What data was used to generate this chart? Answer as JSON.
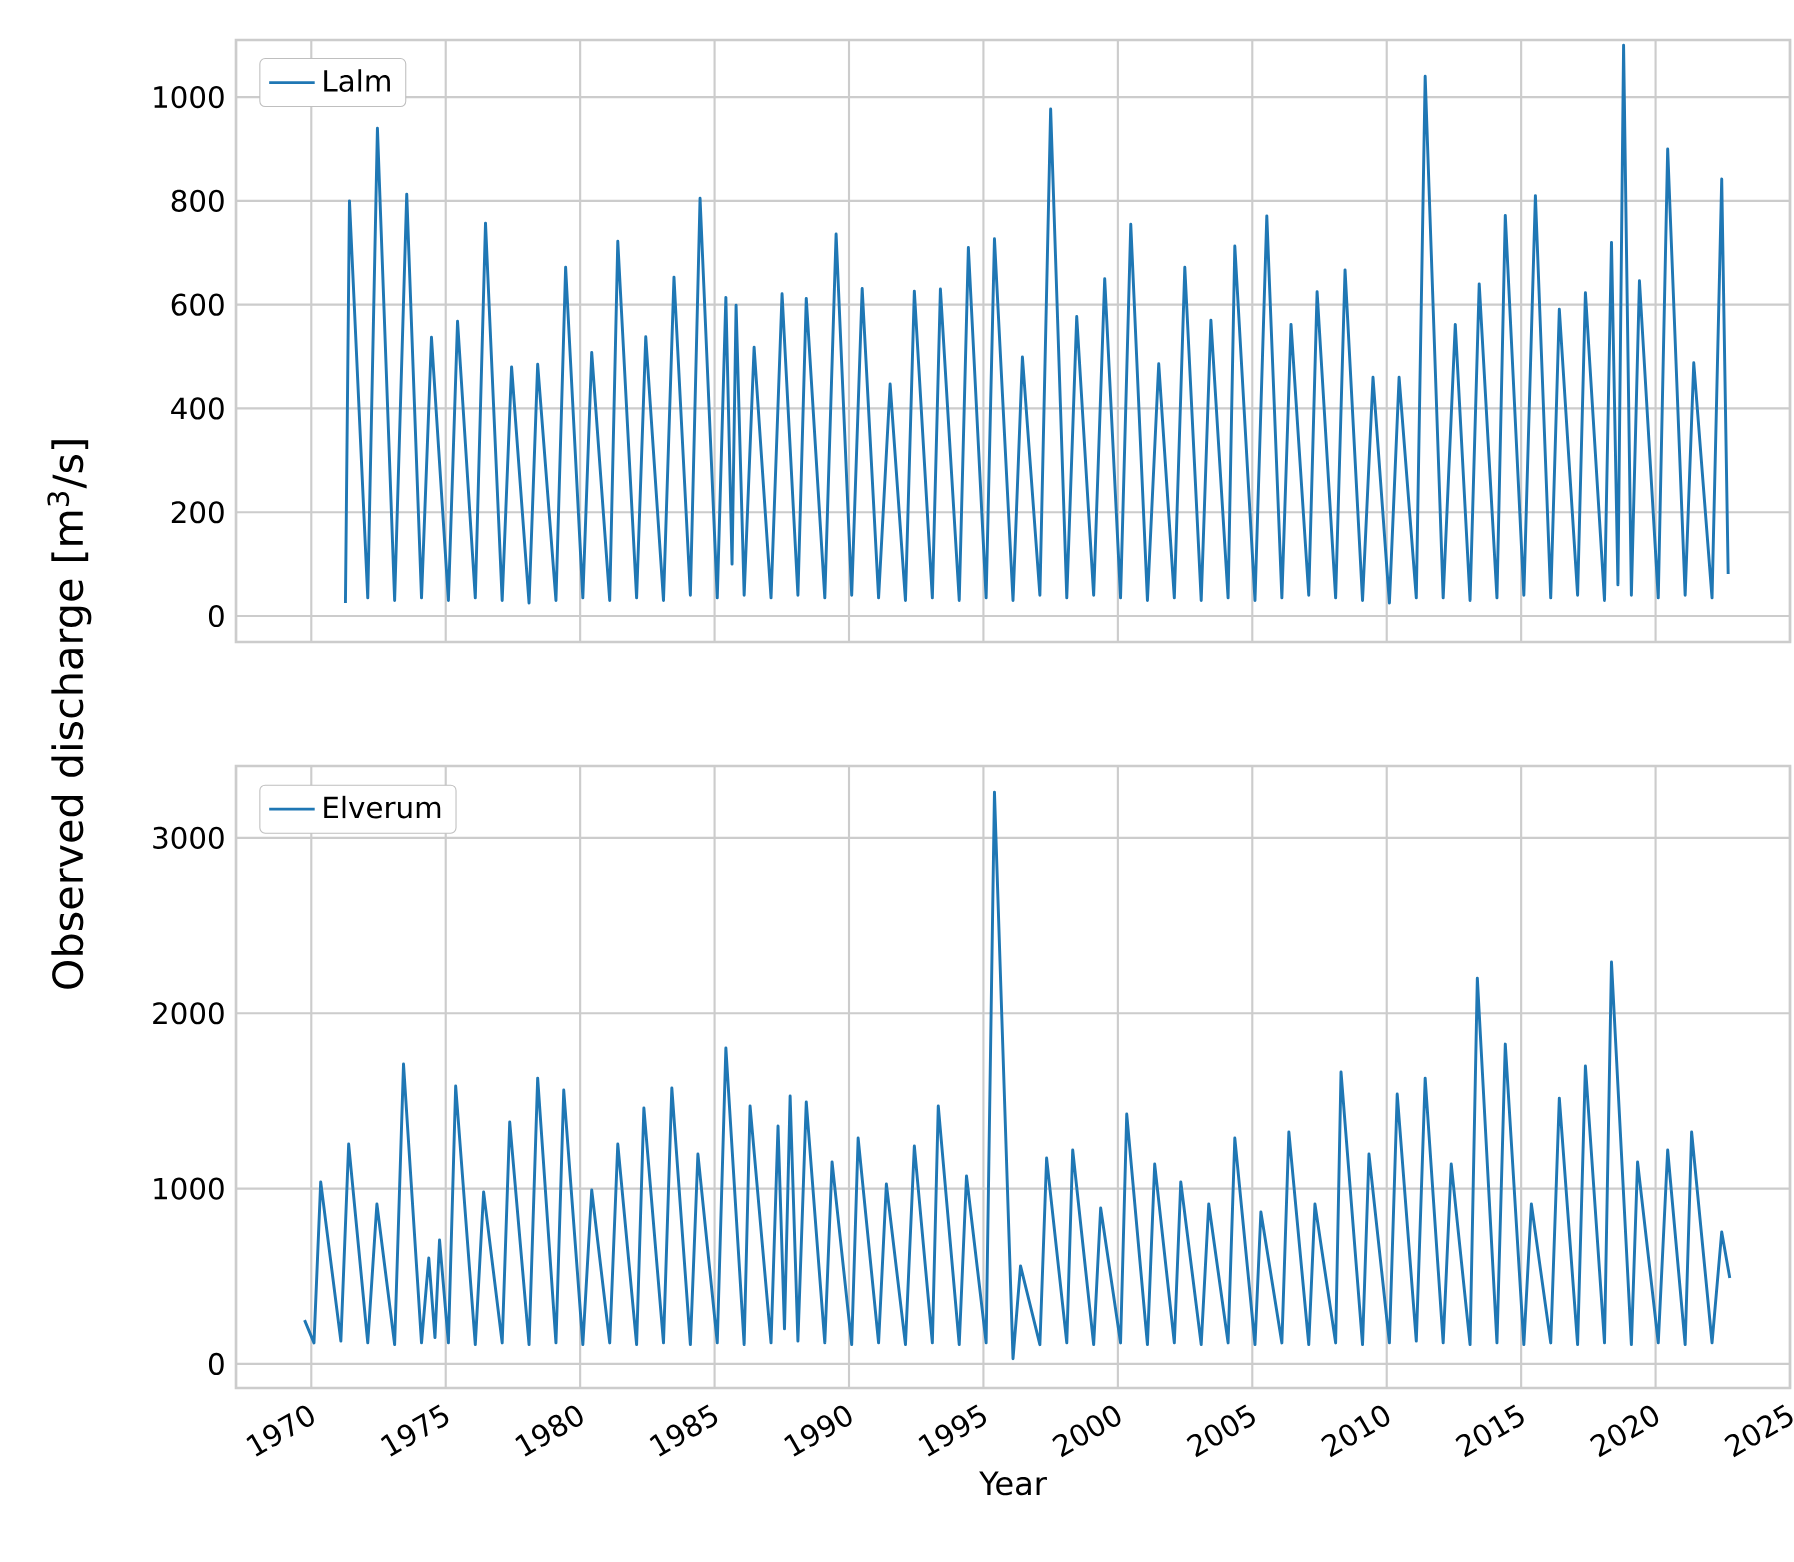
{
  "chart_data": [
    {
      "type": "line",
      "ylabel": "Observed discharge [m$^{3}$/s]",
      "tick_labels": "y",
      "grid": true,
      "legend": "top left",
      "xlim": [
        1967.2,
        2025.0
      ],
      "ylim": [
        -50,
        1110
      ],
      "xticks": [
        1970,
        1975,
        1980,
        1985,
        1990,
        1995,
        2000,
        2005,
        2010,
        2015,
        2020,
        2025
      ],
      "yticks": [
        0,
        200,
        400,
        600,
        800,
        1000
      ],
      "x": [
        1971.27,
        1971.42,
        1972.1,
        1972.46,
        1973.1,
        1973.55,
        1974.1,
        1974.47,
        1975.1,
        1975.44,
        1976.1,
        1976.48,
        1977.1,
        1977.45,
        1978.1,
        1978.42,
        1979.1,
        1979.46,
        1980.1,
        1980.43,
        1981.1,
        1981.4,
        1982.1,
        1982.44,
        1983.1,
        1983.49,
        1984.1,
        1984.46,
        1985.1,
        1985.42,
        1985.65,
        1985.8,
        1986.1,
        1986.47,
        1987.1,
        1987.51,
        1988.1,
        1988.41,
        1989.1,
        1989.52,
        1990.1,
        1990.49,
        1991.1,
        1991.53,
        1992.1,
        1992.43,
        1993.1,
        1993.4,
        1994.1,
        1994.44,
        1995.1,
        1995.41,
        1996.1,
        1996.45,
        1997.1,
        1997.5,
        1998.1,
        1998.47,
        1999.1,
        1999.51,
        2000.1,
        2000.48,
        2001.1,
        2001.52,
        2002.1,
        2002.49,
        2003.1,
        2003.46,
        2004.1,
        2004.35,
        2005.1,
        2005.54,
        2006.1,
        2006.44,
        2007.1,
        2007.41,
        2008.1,
        2008.45,
        2009.1,
        2009.49,
        2010.1,
        2010.46,
        2011.1,
        2011.43,
        2012.1,
        2012.55,
        2013.1,
        2013.44,
        2014.1,
        2014.41,
        2015.1,
        2015.53,
        2016.1,
        2016.42,
        2017.1,
        2017.39,
        2018.1,
        2018.36,
        2018.6,
        2018.81,
        2019.1,
        2019.4,
        2020.1,
        2020.45,
        2021.1,
        2021.42,
        2022.1,
        2022.46,
        2022.7
      ],
      "series": [
        {
          "name": "Lalm",
          "color": "#1f77b4",
          "values": [
            25,
            800,
            35,
            940,
            30,
            813,
            35,
            537,
            30,
            568,
            35,
            757,
            30,
            480,
            25,
            485,
            30,
            672,
            35,
            508,
            30,
            722,
            35,
            538,
            30,
            653,
            40,
            805,
            35,
            614,
            100,
            599,
            40,
            518,
            35,
            621,
            40,
            612,
            35,
            736,
            40,
            631,
            35,
            447,
            30,
            626,
            35,
            630,
            30,
            710,
            35,
            727,
            30,
            499,
            40,
            977,
            35,
            577,
            40,
            650,
            35,
            755,
            30,
            486,
            35,
            672,
            30,
            570,
            35,
            713,
            30,
            771,
            35,
            562,
            40,
            625,
            35,
            667,
            30,
            460,
            25,
            460,
            35,
            1040,
            35,
            562,
            30,
            640,
            35,
            772,
            40,
            810,
            35,
            591,
            40,
            623,
            30,
            720,
            60,
            1100,
            40,
            646,
            35,
            900,
            40,
            488,
            35,
            842,
            81
          ]
        }
      ]
    },
    {
      "type": "line",
      "xlabel": "Year",
      "grid": true,
      "legend": "top left",
      "xlim": [
        1967.2,
        2025.0
      ],
      "ylim": [
        -137,
        3410
      ],
      "xticks": [
        1970,
        1975,
        1980,
        1985,
        1990,
        1995,
        2000,
        2005,
        2010,
        2015,
        2020,
        2025
      ],
      "yticks": [
        0,
        1000,
        2000,
        3000
      ],
      "x": [
        1969.75,
        1970.1,
        1970.35,
        1971.1,
        1971.39,
        1972.1,
        1972.44,
        1973.1,
        1973.43,
        1974.1,
        1974.37,
        1974.6,
        1974.77,
        1975.1,
        1975.37,
        1976.1,
        1976.41,
        1977.1,
        1977.38,
        1978.1,
        1978.42,
        1979.1,
        1979.39,
        1980.1,
        1980.43,
        1981.1,
        1981.4,
        1982.1,
        1982.37,
        1983.1,
        1983.41,
        1984.1,
        1984.38,
        1985.1,
        1985.42,
        1986.1,
        1986.32,
        1987.1,
        1987.36,
        1987.6,
        1987.81,
        1988.1,
        1988.41,
        1989.1,
        1989.37,
        1990.1,
        1990.34,
        1991.1,
        1991.39,
        1992.1,
        1992.43,
        1993.1,
        1993.32,
        1994.1,
        1994.37,
        1995.1,
        1995.41,
        1996.1,
        1996.38,
        1997.1,
        1997.35,
        1998.1,
        1998.32,
        1999.1,
        1999.36,
        2000.1,
        2000.33,
        2001.1,
        2001.37,
        2002.1,
        2002.34,
        2003.1,
        2003.38,
        2004.1,
        2004.35,
        2005.1,
        2005.32,
        2006.1,
        2006.36,
        2007.1,
        2007.33,
        2008.1,
        2008.3,
        2009.1,
        2009.34,
        2010.1,
        2010.39,
        2011.1,
        2011.43,
        2012.1,
        2012.4,
        2013.1,
        2013.37,
        2014.1,
        2014.41,
        2015.1,
        2015.38,
        2016.1,
        2016.42,
        2017.1,
        2017.39,
        2018.1,
        2018.36,
        2019.1,
        2019.33,
        2020.1,
        2020.45,
        2021.1,
        2021.34,
        2022.1,
        2022.46,
        2022.76
      ],
      "series": [
        {
          "name": "Elverum",
          "color": "#1f77b4",
          "values": [
            250,
            120,
            1038,
            130,
            1254,
            120,
            912,
            110,
            1710,
            120,
            604,
            150,
            707,
            120,
            1585,
            110,
            981,
            120,
            1380,
            110,
            1630,
            120,
            1562,
            110,
            992,
            120,
            1254,
            110,
            1460,
            120,
            1574,
            110,
            1197,
            120,
            1802,
            110,
            1471,
            120,
            1357,
            200,
            1528,
            130,
            1494,
            120,
            1152,
            110,
            1288,
            120,
            1026,
            110,
            1243,
            120,
            1471,
            110,
            1072,
            120,
            3261,
            30,
            559,
            110,
            1174,
            120,
            1220,
            110,
            889,
            120,
            1425,
            110,
            1140,
            120,
            1038,
            110,
            912,
            120,
            1288,
            110,
            867,
            120,
            1323,
            110,
            912,
            120,
            1665,
            110,
            1197,
            120,
            1539,
            130,
            1630,
            120,
            1140,
            110,
            2200,
            120,
            1824,
            110,
            912,
            120,
            1516,
            110,
            1699,
            120,
            2292,
            110,
            1152,
            120,
            1220,
            110,
            1323,
            120,
            753,
            490
          ]
        }
      ]
    }
  ]
}
